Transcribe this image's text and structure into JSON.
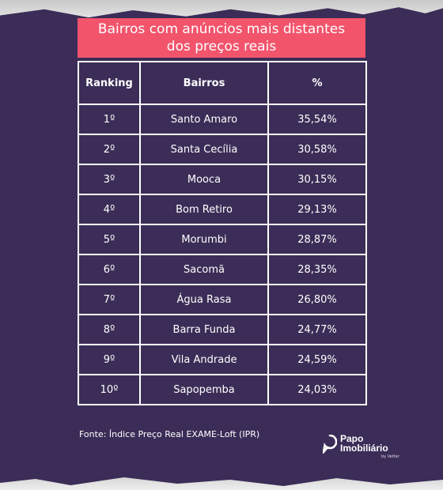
{
  "title": "Bairros com anúncios mais distantes\ndos preços reais",
  "table": {
    "headers": [
      "Ranking",
      "Bairros",
      "%"
    ],
    "rows": [
      {
        "rank": "1º",
        "bairro": "Santo Amaro",
        "pct": "35,54%"
      },
      {
        "rank": "2º",
        "bairro": "Santa Cecília",
        "pct": "30,58%"
      },
      {
        "rank": "3º",
        "bairro": "Mooca",
        "pct": "30,15%"
      },
      {
        "rank": "4º",
        "bairro": "Bom Retiro",
        "pct": "29,13%"
      },
      {
        "rank": "5º",
        "bairro": "Morumbi",
        "pct": "28,87%"
      },
      {
        "rank": "6º",
        "bairro": "Sacomã",
        "pct": "28,35%"
      },
      {
        "rank": "7º",
        "bairro": "Água Rasa",
        "pct": "26,80%"
      },
      {
        "rank": "8º",
        "bairro": "Barra Funda",
        "pct": "24,77%"
      },
      {
        "rank": "9º",
        "bairro": "Vila Andrade",
        "pct": "24,59%"
      },
      {
        "rank": "10º",
        "bairro": "Sapopemba",
        "pct": "24,03%"
      }
    ]
  },
  "source": "Fonte: Índice Preço Real EXAME-Loft (IPR)",
  "brand": {
    "name": "Papo\nImobiliário",
    "sub": "by Vetter",
    "icon": "papo-logo-icon"
  },
  "colors": {
    "background": "#3b2d57",
    "title_bg": "#f2546c",
    "text": "#ffffff"
  }
}
